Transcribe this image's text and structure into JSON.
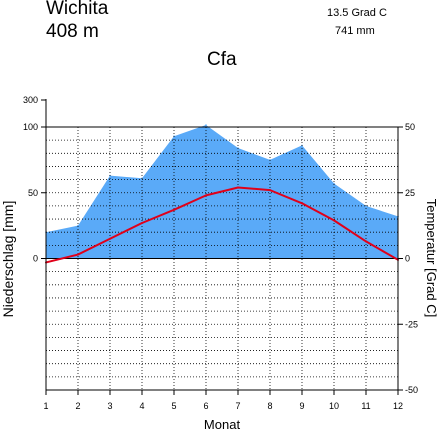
{
  "header": {
    "station": "Wichita",
    "elevation": "408  m",
    "mean_temp": "13.5 Grad C",
    "annual_precip": "741 mm",
    "climate_class": "Cfa"
  },
  "chart_data": {
    "type": "area",
    "xlabel": "Monat",
    "ylabel_left": "Niederschlag [mm]",
    "ylabel_right": "Temperatur [Grad C]",
    "categories": [
      1,
      2,
      3,
      4,
      5,
      6,
      7,
      8,
      9,
      10,
      11,
      12
    ],
    "left_tick_labels": [
      "300",
      "100",
      "50",
      "0"
    ],
    "right_tick_labels": [
      "50",
      "25",
      "0",
      "-25",
      "-50"
    ],
    "xlim": [
      1,
      12
    ],
    "right_ylim": [
      -50,
      50
    ],
    "grid": true,
    "colors": {
      "precipitation": "#5aaaf8",
      "temperature": "#e0001a"
    },
    "series": [
      {
        "kind": "precipitation",
        "values": [
          20,
          25,
          63,
          61,
          93,
          105,
          84,
          75,
          86,
          57,
          40,
          32
        ]
      },
      {
        "kind": "temperature",
        "values": [
          -1.5,
          1.5,
          7.5,
          13.5,
          18.5,
          24,
          27,
          26,
          21,
          14.5,
          6.5,
          -0.5
        ]
      }
    ]
  }
}
